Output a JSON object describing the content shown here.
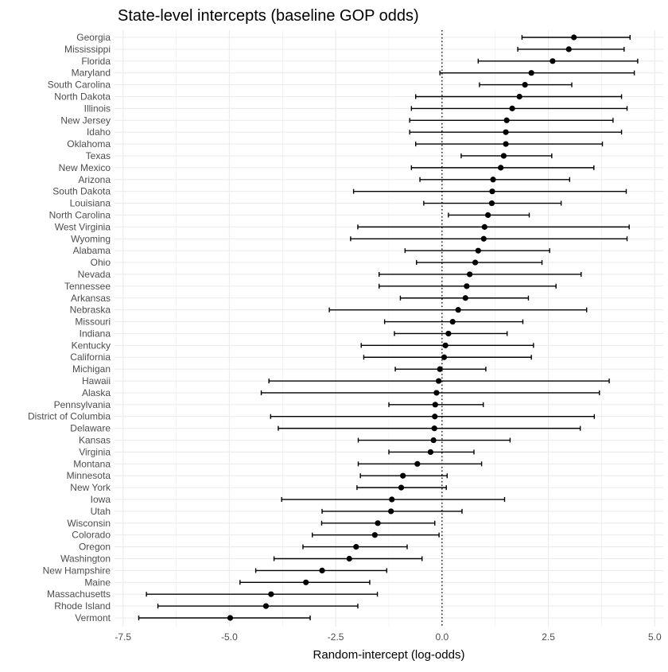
{
  "chart_data": {
    "type": "scatter",
    "subtype": "point-range (dot with error bars)",
    "title": "State-level intercepts (baseline GOP odds)",
    "xlabel": "Random-intercept (log-odds)",
    "ylabel": "",
    "xlim": [
      -7.7,
      5.2
    ],
    "xticks": [
      -7.5,
      -5.0,
      -2.5,
      0.0,
      2.5,
      5.0
    ],
    "xtick_labels": [
      "-7.5",
      "-5.0",
      "-2.5",
      "0.0",
      "2.5",
      "5.0"
    ],
    "reference_line": {
      "x": 0,
      "style": "dotted"
    },
    "grid": true,
    "legend": "none",
    "colors": {
      "point": "#000000",
      "errorbar": "#000000",
      "grid": "#ebebeb",
      "refline": "#000000"
    },
    "categories": [
      "Georgia",
      "Mississippi",
      "Florida",
      "Maryland",
      "South Carolina",
      "North Dakota",
      "Illinois",
      "New Jersey",
      "Idaho",
      "Oklahoma",
      "Texas",
      "New Mexico",
      "Arizona",
      "South Dakota",
      "Louisiana",
      "North Carolina",
      "West Virginia",
      "Wyoming",
      "Alabama",
      "Ohio",
      "Nevada",
      "Tennessee",
      "Arkansas",
      "Nebraska",
      "Missouri",
      "Indiana",
      "Kentucky",
      "California",
      "Michigan",
      "Hawaii",
      "Alaska",
      "Pennsylvania",
      "District of Columbia",
      "Delaware",
      "Kansas",
      "Virginia",
      "Montana",
      "Minnesota",
      "New York",
      "Iowa",
      "Utah",
      "Wisconsin",
      "Colorado",
      "Oregon",
      "Washington",
      "New Hampshire",
      "Maine",
      "Massachusetts",
      "Rhode Island",
      "Vermont"
    ],
    "estimate": [
      3.1,
      2.98,
      2.6,
      2.1,
      1.95,
      1.82,
      1.65,
      1.52,
      1.5,
      1.5,
      1.45,
      1.38,
      1.2,
      1.18,
      1.17,
      1.08,
      1.0,
      0.98,
      0.85,
      0.78,
      0.65,
      0.58,
      0.55,
      0.38,
      0.25,
      0.15,
      0.08,
      0.05,
      -0.05,
      -0.08,
      -0.13,
      -0.16,
      -0.17,
      -0.18,
      -0.2,
      -0.27,
      -0.58,
      -0.92,
      -0.96,
      -1.18,
      -1.2,
      -1.51,
      -1.58,
      -2.02,
      -2.18,
      -2.82,
      -3.2,
      -4.02,
      -4.14,
      -4.98
    ],
    "lower": [
      1.88,
      1.78,
      0.85,
      -0.05,
      0.88,
      -0.62,
      -0.72,
      -0.76,
      -0.76,
      -0.62,
      0.45,
      -0.72,
      -0.52,
      -2.08,
      -0.43,
      0.15,
      -1.98,
      -2.15,
      -0.87,
      -0.6,
      -1.48,
      -1.48,
      -0.98,
      -2.65,
      -1.35,
      -1.12,
      -1.9,
      -1.84,
      -1.1,
      -4.07,
      -4.25,
      -1.25,
      -4.03,
      -3.85,
      -1.97,
      -1.25,
      -1.97,
      -1.92,
      -2.0,
      -3.77,
      -2.82,
      -2.83,
      -3.05,
      -3.27,
      -3.95,
      -4.38,
      -4.75,
      -6.95,
      -6.68,
      -7.13
    ],
    "upper": [
      4.42,
      4.28,
      4.6,
      4.52,
      3.05,
      4.22,
      4.35,
      4.02,
      4.22,
      3.77,
      2.58,
      3.57,
      3.0,
      4.33,
      2.8,
      2.05,
      4.4,
      4.35,
      2.53,
      2.35,
      3.27,
      2.68,
      2.03,
      3.4,
      1.9,
      1.53,
      2.15,
      2.1,
      1.03,
      3.93,
      3.7,
      0.97,
      3.58,
      3.25,
      1.6,
      0.75,
      0.93,
      0.12,
      0.1,
      1.47,
      0.47,
      -0.17,
      -0.07,
      -0.82,
      -0.47,
      -1.3,
      -1.7,
      -1.52,
      -1.98,
      -3.1
    ]
  }
}
